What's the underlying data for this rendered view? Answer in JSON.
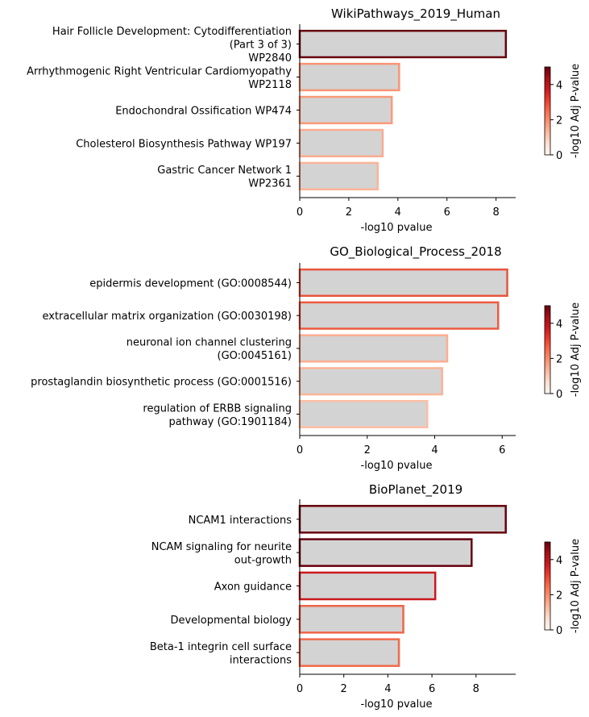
{
  "colorbar_label": "-log10 Adj P-value",
  "chart_data": [
    {
      "type": "bar",
      "orientation": "horizontal",
      "title": "WikiPathways_2019_Human",
      "xlabel": "-log10 pvalue",
      "ylabel": "",
      "xlim": [
        0,
        8.8
      ],
      "xticks": [
        0,
        2,
        4,
        6,
        8
      ],
      "categories": [
        "Hair Follicle Development: Cytodifferentiation\n(Part 3 of 3)\nWP2840",
        "Arrhythmogenic Right Ventricular Cardiomyopathy\nWP2118",
        "Endochondral Ossification WP474",
        "Cholesterol Biosynthesis Pathway WP197",
        "Gastric Cancer Network 1\nWP2361"
      ],
      "values": [
        8.4,
        4.05,
        3.75,
        3.38,
        3.18
      ],
      "adj_log10_p": [
        4.9,
        1.3,
        1.15,
        0.95,
        0.8
      ],
      "edge_colors": [
        "#67000d",
        "#fb9474",
        "#fb9a7a",
        "#fcab8f",
        "#fcb499"
      ],
      "bar_fill": "#d3d3d3",
      "colorbar": {
        "min": 0,
        "max": 5,
        "ticks": [
          0,
          2,
          4
        ]
      }
    },
    {
      "type": "bar",
      "orientation": "horizontal",
      "title": "GO_Biological_Process_2018",
      "xlabel": "-log10 pvalue",
      "ylabel": "",
      "xlim": [
        0,
        6.4
      ],
      "xticks": [
        0,
        2,
        4,
        6
      ],
      "categories": [
        "epidermis development (GO:0008544)",
        "extracellular matrix organization (GO:0030198)",
        "neuronal ion channel clustering\n(GO:0045161)",
        "prostaglandin biosynthetic process (GO:0001516)",
        "regulation of ERBB signaling\npathway (GO:1901184)"
      ],
      "values": [
        6.15,
        5.88,
        4.37,
        4.22,
        3.78
      ],
      "adj_log10_p": [
        2.5,
        2.3,
        1.1,
        1.0,
        0.8
      ],
      "edge_colors": [
        "#e9553d",
        "#ec5a41",
        "#fcad90",
        "#fcb398",
        "#fcbea5"
      ],
      "bar_fill": "#d3d3d3",
      "colorbar": {
        "min": 0,
        "max": 5,
        "ticks": [
          0,
          2,
          4
        ]
      }
    },
    {
      "type": "bar",
      "orientation": "horizontal",
      "title": "BioPlanet_2019",
      "xlabel": "-log10 pvalue",
      "ylabel": "",
      "xlim": [
        0,
        9.8
      ],
      "xticks": [
        0,
        2,
        4,
        6,
        8
      ],
      "categories": [
        "NCAM1 interactions",
        "NCAM signaling for neurite\nout-growth",
        "Axon guidance",
        "Developmental biology",
        "Beta-1 integrin cell surface\ninteractions"
      ],
      "values": [
        9.35,
        7.8,
        6.15,
        4.7,
        4.5
      ],
      "adj_log10_p": [
        4.9,
        4.6,
        3.2,
        2.0,
        1.9
      ],
      "edge_colors": [
        "#67000d",
        "#67000d",
        "#cb181d",
        "#ef6548",
        "#f06a4b"
      ],
      "bar_fill": "#d3d3d3",
      "colorbar": {
        "min": 0,
        "max": 5,
        "ticks": [
          0,
          2,
          4
        ]
      }
    }
  ]
}
